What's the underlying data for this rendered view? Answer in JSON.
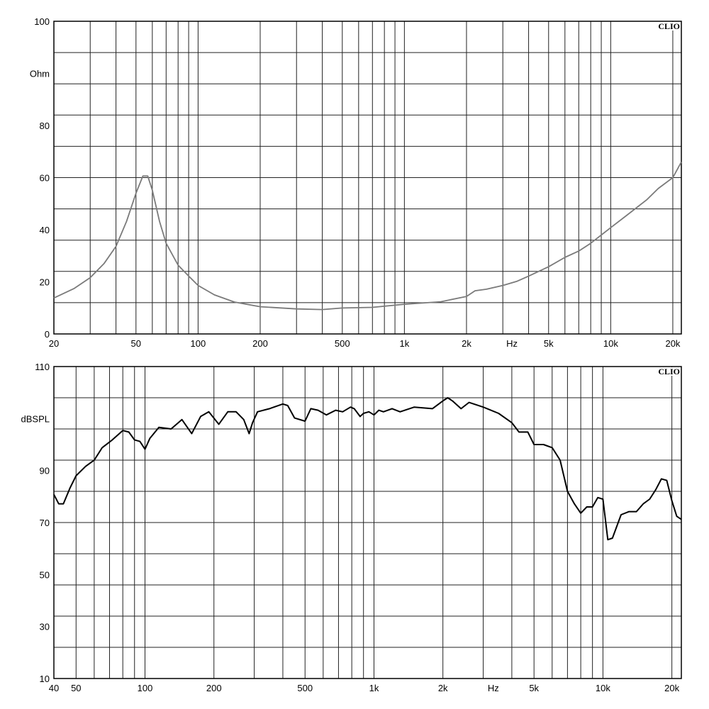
{
  "chart_data": [
    {
      "type": "line",
      "ylabel": "Ohm",
      "xlabel": "Hz",
      "brand": "CLIO",
      "xscale": "log",
      "xlim": [
        20,
        22000
      ],
      "ylim": [
        0,
        100
      ],
      "grid": true,
      "line_color": "#7a7a7a",
      "y_ticks": [
        "100",
        "Ohm",
        "80",
        "60",
        "40",
        "20",
        "0"
      ],
      "x_ticks": [
        "20",
        "50",
        "100",
        "200",
        "500",
        "1k",
        "2k",
        "Hz",
        "5k",
        "10k",
        "20k"
      ],
      "series": [
        {
          "x": [
            20,
            25,
            30,
            35,
            40,
            45,
            50,
            54,
            57,
            60,
            65,
            70,
            80,
            90,
            100,
            120,
            150,
            200,
            300,
            400,
            500,
            700,
            1000,
            1500,
            2000,
            2200,
            2500,
            3000,
            3500,
            4000,
            5000,
            6000,
            7000,
            8000,
            10000,
            12000,
            15000,
            17000,
            20000,
            22000
          ],
          "y": [
            11.5,
            14.5,
            18,
            22.5,
            28,
            36,
            45,
            50.5,
            50.5,
            46,
            36,
            29,
            22,
            18.5,
            15.5,
            12.5,
            10.2,
            8.7,
            8,
            7.8,
            8.3,
            8.5,
            9.5,
            10.3,
            12,
            13.8,
            14.3,
            15.5,
            16.8,
            18.5,
            21.5,
            24.5,
            26.5,
            29,
            34,
            38,
            43,
            46.5,
            50,
            55
          ]
        }
      ]
    },
    {
      "type": "line",
      "ylabel": "dBSPL",
      "xlabel": "Hz",
      "brand": "CLIO",
      "xscale": "log",
      "xlim": [
        40,
        22000
      ],
      "ylim": [
        10,
        110
      ],
      "grid": true,
      "line_color": "#000000",
      "y_ticks": [
        "110",
        "dBSPL",
        "90",
        "70",
        "50",
        "30",
        "10"
      ],
      "x_ticks": [
        "40",
        "50",
        "100",
        "200",
        "500",
        "1k",
        "2k",
        "Hz",
        "5k",
        "10k",
        "20k"
      ],
      "series": [
        {
          "x": [
            40,
            42,
            44,
            47,
            50,
            55,
            60,
            65,
            72,
            80,
            85,
            90,
            95,
            100,
            105,
            115,
            130,
            145,
            160,
            175,
            190,
            210,
            230,
            250,
            270,
            285,
            295,
            310,
            350,
            400,
            420,
            450,
            500,
            530,
            570,
            620,
            680,
            730,
            790,
            820,
            870,
            900,
            950,
            1000,
            1050,
            1100,
            1200,
            1300,
            1500,
            1800,
            2000,
            2100,
            2200,
            2400,
            2600,
            3000,
            3500,
            4000,
            4300,
            4700,
            5000,
            5500,
            6000,
            6500,
            7000,
            7500,
            8000,
            8500,
            9000,
            9500,
            10000,
            10500,
            11000,
            12000,
            13000,
            14000,
            15000,
            16000,
            17000,
            18000,
            19000,
            20000,
            21000,
            22000
          ],
          "y": [
            69,
            66,
            66,
            71,
            75,
            78,
            80,
            84,
            86.5,
            89.5,
            89,
            86.5,
            86,
            83.5,
            87,
            90.5,
            90,
            93,
            88.5,
            94,
            95.5,
            91.5,
            95.5,
            95.5,
            93,
            88.5,
            92,
            95.5,
            96.5,
            98,
            97.5,
            93.5,
            92.5,
            96.5,
            96,
            94.5,
            96,
            95.5,
            97,
            96.5,
            94,
            95,
            95.5,
            94.5,
            96,
            95.5,
            96.5,
            95.5,
            97,
            96.5,
            99,
            100,
            99,
            96.5,
            98.5,
            97,
            95,
            92,
            89,
            89,
            85,
            85,
            84,
            80,
            70,
            66,
            63,
            65,
            65,
            68,
            67.5,
            54.5,
            55,
            62.5,
            63.5,
            63.5,
            66,
            67.5,
            70.5,
            74,
            73.5,
            67,
            62,
            61
          ]
        }
      ]
    }
  ]
}
